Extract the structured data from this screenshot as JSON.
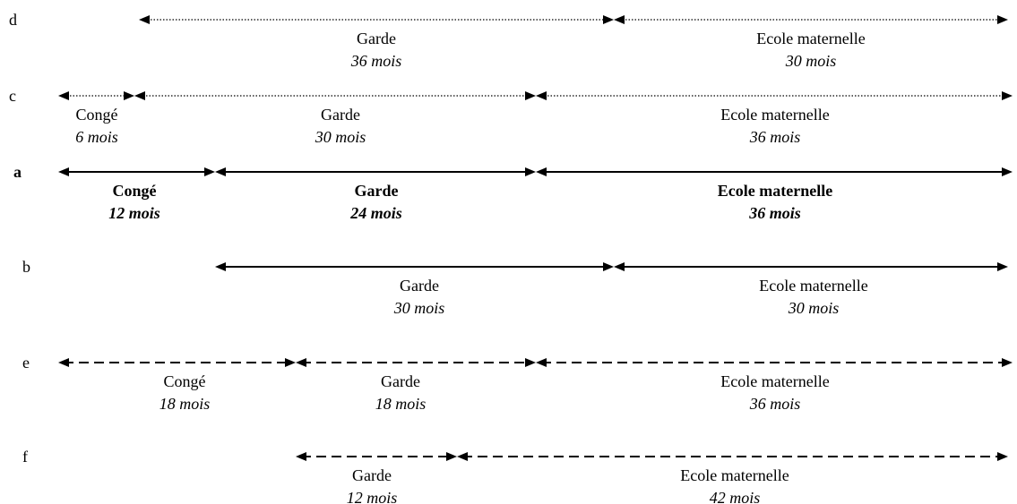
{
  "rows": [
    {
      "label": "d",
      "segments": [
        {
          "name": "Garde",
          "duration": "36 mois"
        },
        {
          "name": "Ecole maternelle",
          "duration": "30 mois"
        }
      ]
    },
    {
      "label": "c",
      "segments": [
        {
          "name": "Congé",
          "duration": "6 mois"
        },
        {
          "name": "Garde",
          "duration": "30 mois"
        },
        {
          "name": "Ecole maternelle",
          "duration": "36 mois"
        }
      ]
    },
    {
      "label": "a",
      "segments": [
        {
          "name": "Congé",
          "duration": "12 mois"
        },
        {
          "name": "Garde",
          "duration": "24 mois"
        },
        {
          "name": "Ecole maternelle",
          "duration": "36 mois"
        }
      ]
    },
    {
      "label": "b",
      "segments": [
        {
          "name": "Garde",
          "duration": "30 mois"
        },
        {
          "name": "Ecole maternelle",
          "duration": "30 mois"
        }
      ]
    },
    {
      "label": "e",
      "segments": [
        {
          "name": "Congé",
          "duration": "18 mois"
        },
        {
          "name": "Garde",
          "duration": "18 mois"
        },
        {
          "name": "Ecole maternelle",
          "duration": "36 mois"
        }
      ]
    },
    {
      "label": "f",
      "segments": [
        {
          "name": "Garde",
          "duration": "12 mois"
        },
        {
          "name": "Ecole maternelle",
          "duration": "42 mois"
        }
      ]
    }
  ]
}
